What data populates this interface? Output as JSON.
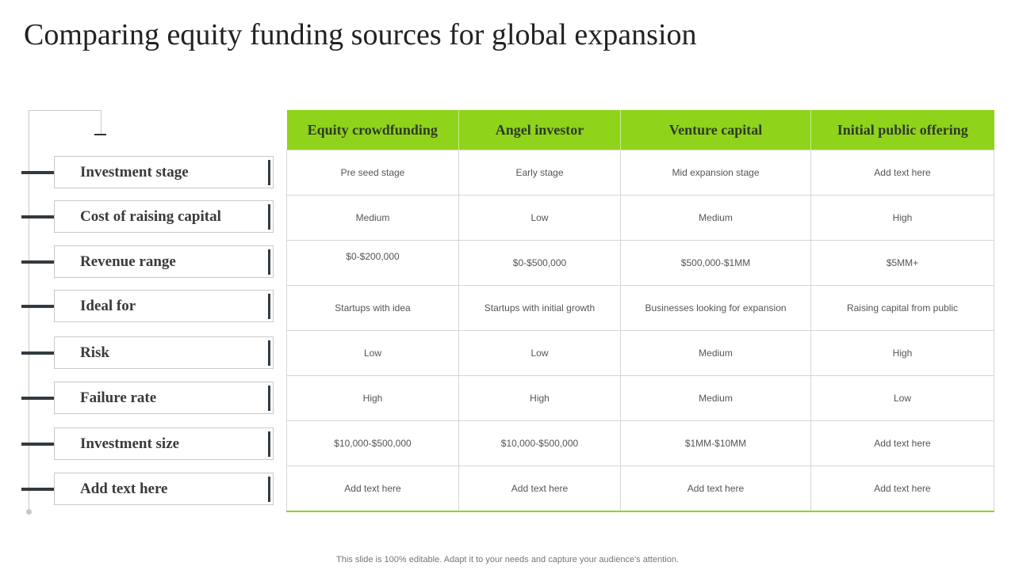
{
  "title": "Comparing equity funding sources for global expansion",
  "colors": {
    "accent": "#8fd31b",
    "dark_bar": "#333a3f"
  },
  "row_labels": [
    "Investment stage",
    "Cost of raising capital",
    "Revenue range",
    "Ideal for",
    "Risk",
    "Failure rate",
    "Investment size",
    "Add text here"
  ],
  "columns": [
    "Equity crowdfunding",
    "Angel investor",
    "Venture capital",
    "Initial public offering"
  ],
  "rows": [
    [
      "Pre seed stage",
      "Early stage",
      "Mid expansion stage",
      "Add text here"
    ],
    [
      "Medium",
      "Low",
      "Medium",
      "High"
    ],
    [
      "$0-$200,000",
      "$0-$500,000",
      "$500,000-$1MM",
      "$5MM+"
    ],
    [
      "Startups with idea",
      "Startups with initial growth",
      "Businesses looking for expansion",
      "Raising capital from public"
    ],
    [
      "Low",
      "Low",
      "Medium",
      "High"
    ],
    [
      "High",
      "High",
      "Medium",
      "Low"
    ],
    [
      "$10,000-$500,000",
      "$10,000-$500,000",
      "$1MM-$10MM",
      "Add text here"
    ],
    [
      "Add text here",
      "Add text here",
      "Add text here",
      "Add text here"
    ]
  ],
  "footer": "This slide is 100% editable. Adapt it to your needs and capture your audience's attention."
}
